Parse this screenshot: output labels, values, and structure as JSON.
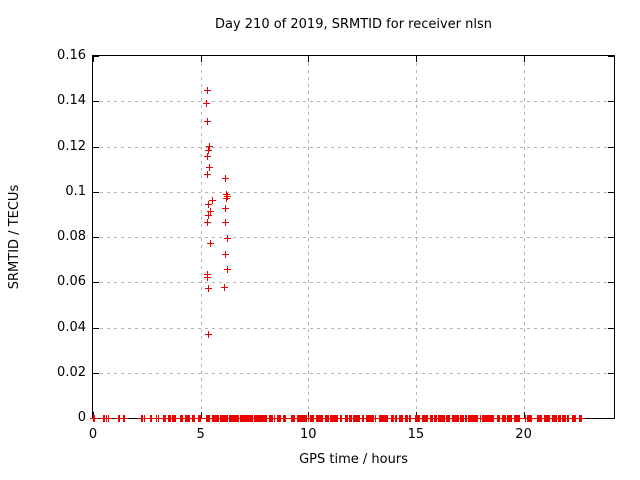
{
  "chart": {
    "title": "Day 210 of 2019, SRMTID for receiver nlsn",
    "xlabel": "GPS time / hours",
    "ylabel": "SRMTID / TECUs",
    "colors": {
      "marker": "#ee0000",
      "grid": "#b4b4b4",
      "border": "#000000",
      "background": "#ffffff",
      "text": "#000000"
    }
  },
  "chart_data": {
    "type": "scatter",
    "title": "Day 210 of 2019, SRMTID for receiver nlsn",
    "xlabel": "GPS time / hours",
    "ylabel": "SRMTID / TECUs",
    "xlim": [
      0,
      24.2
    ],
    "ylim": [
      0,
      0.16
    ],
    "xtick_values": [
      0,
      5,
      10,
      15,
      20
    ],
    "xtick_labels": [
      "0",
      "5",
      "10",
      "15",
      "20"
    ],
    "ytick_values": [
      0,
      0.02,
      0.04,
      0.06,
      0.08,
      0.1,
      0.12,
      0.14,
      0.16
    ],
    "ytick_labels": [
      "0",
      "0.02",
      "0.04",
      "0.06",
      "0.08",
      "0.1",
      "0.12",
      "0.14",
      "0.16"
    ],
    "grid": true,
    "legend": false,
    "marker": "plus",
    "series": [
      {
        "name": "elevated-points",
        "points": [
          [
            5.33,
            0.1447
          ],
          [
            5.27,
            0.139
          ],
          [
            5.33,
            0.131
          ],
          [
            5.41,
            0.1199
          ],
          [
            5.36,
            0.1181
          ],
          [
            5.3,
            0.1156
          ],
          [
            5.41,
            0.1107
          ],
          [
            5.33,
            0.1075
          ],
          [
            6.17,
            0.1058
          ],
          [
            6.18,
            0.0988
          ],
          [
            6.27,
            0.0979
          ],
          [
            6.22,
            0.0968
          ],
          [
            5.55,
            0.0961
          ],
          [
            5.38,
            0.0942
          ],
          [
            6.15,
            0.0925
          ],
          [
            5.47,
            0.0912
          ],
          [
            5.38,
            0.0895
          ],
          [
            5.33,
            0.0865
          ],
          [
            6.17,
            0.0864
          ],
          [
            6.26,
            0.0794
          ],
          [
            5.46,
            0.0772
          ],
          [
            6.17,
            0.0724
          ],
          [
            6.23,
            0.0657
          ],
          [
            5.34,
            0.0633
          ],
          [
            5.34,
            0.062
          ],
          [
            6.1,
            0.0577
          ],
          [
            5.37,
            0.0573
          ],
          [
            5.36,
            0.0369
          ]
        ]
      },
      {
        "name": "baseline-points",
        "value": 0,
        "step": 0.05,
        "segments": [
          [
            0.02,
            0.08
          ],
          [
            0.48,
            0.54
          ],
          [
            0.65,
            0.72
          ],
          [
            1.19,
            1.28
          ],
          [
            1.42,
            1.5
          ],
          [
            2.27,
            2.38
          ],
          [
            2.65,
            2.72
          ],
          [
            2.97,
            3.06
          ],
          [
            3.28,
            3.38
          ],
          [
            3.51,
            3.62
          ],
          [
            3.69,
            3.88
          ],
          [
            4.06,
            4.19
          ],
          [
            4.29,
            4.5
          ],
          [
            4.6,
            4.73
          ],
          [
            4.91,
            5.04
          ],
          [
            5.25,
            5.42
          ],
          [
            5.55,
            6.12
          ],
          [
            6.17,
            6.58
          ],
          [
            6.63,
            8.1
          ],
          [
            8.21,
            8.45
          ],
          [
            8.56,
            8.72
          ],
          [
            8.83,
            8.94
          ],
          [
            9.23,
            9.38
          ],
          [
            9.49,
            10.0
          ],
          [
            10.11,
            10.27
          ],
          [
            10.38,
            10.69
          ],
          [
            10.81,
            11.36
          ],
          [
            11.51,
            11.58
          ],
          [
            11.71,
            11.82
          ],
          [
            11.93,
            12.4
          ],
          [
            12.52,
            12.6
          ],
          [
            12.7,
            13.1
          ],
          [
            13.29,
            13.69
          ],
          [
            13.88,
            14.1
          ],
          [
            14.22,
            14.41
          ],
          [
            14.53,
            14.77
          ],
          [
            14.97,
            15.19
          ],
          [
            15.31,
            15.58
          ],
          [
            15.69,
            15.96
          ],
          [
            16.05,
            16.58
          ],
          [
            16.7,
            17.2
          ],
          [
            17.32,
            17.9
          ],
          [
            18.02,
            18.64
          ],
          [
            18.79,
            18.91
          ],
          [
            19.03,
            19.45
          ],
          [
            19.57,
            19.84
          ],
          [
            20.11,
            20.38
          ],
          [
            20.65,
            20.85
          ],
          [
            20.96,
            21.24
          ],
          [
            21.35,
            21.7
          ],
          [
            21.82,
            22.09
          ],
          [
            22.28,
            22.47
          ],
          [
            22.59,
            22.73
          ]
        ]
      }
    ]
  }
}
